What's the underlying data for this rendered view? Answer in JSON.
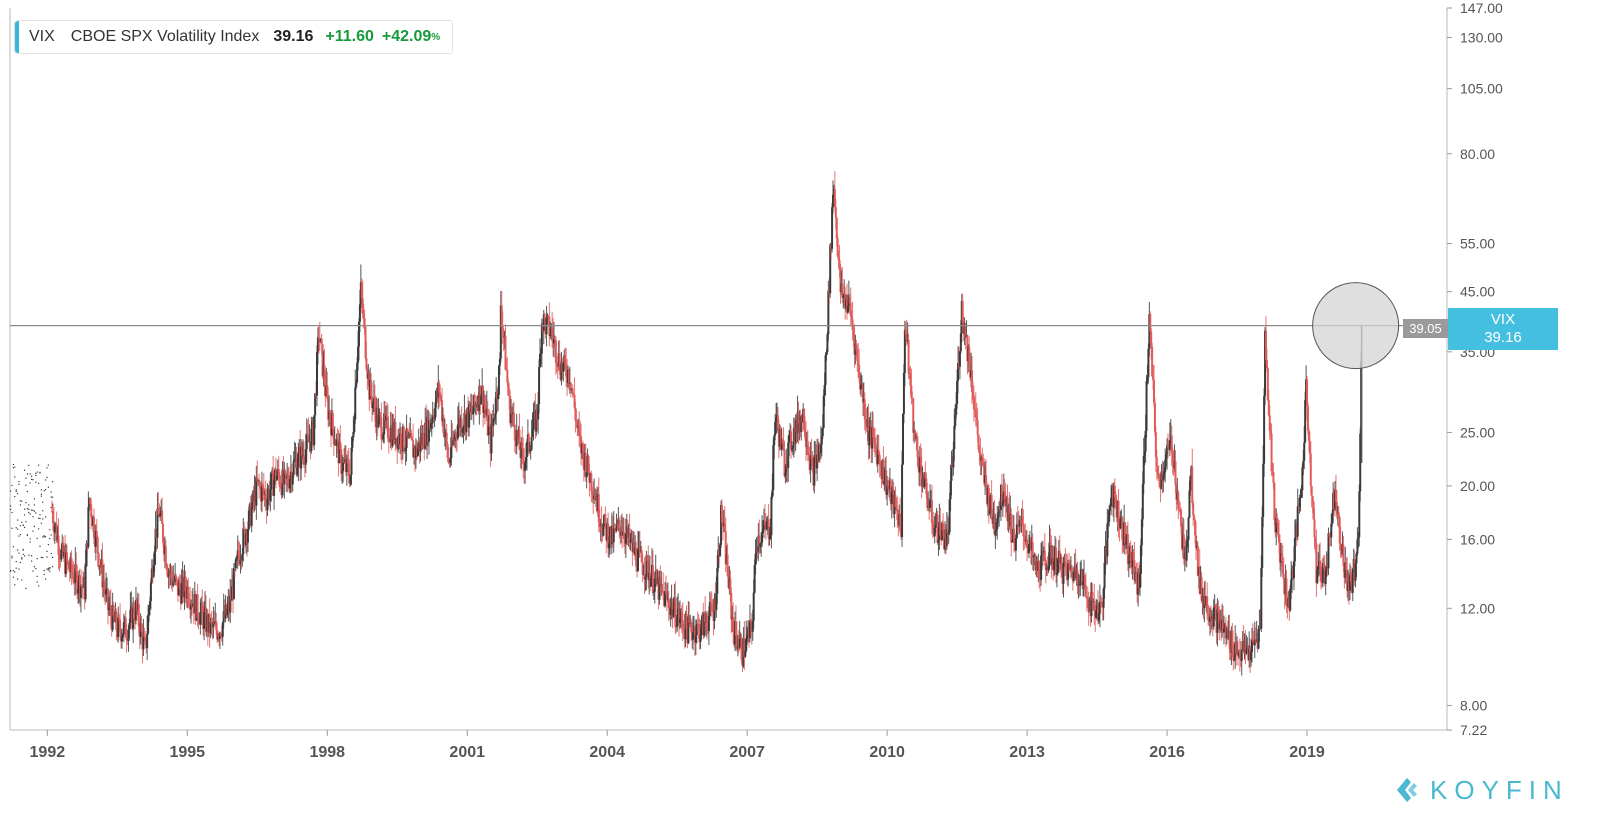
{
  "legend": {
    "ticker": "VIX",
    "name": "CBOE SPX Volatility Index",
    "value": "39.16",
    "change": "+11.60",
    "change_pct": "+42.09",
    "pct_sign": "%"
  },
  "crosshair_label": "39.05",
  "last_price_tag": {
    "ticker": "VIX",
    "value": "39.16"
  },
  "brand": {
    "name": "KOYFIN",
    "icon": "koyfin-logo-icon"
  },
  "colors": {
    "up": "#e25a5a",
    "down": "#3a3a3a",
    "accent": "#45bfdf",
    "positive": "#179a3b",
    "brand": "#4ab8cf"
  },
  "chart_data": {
    "type": "line",
    "title": "VIX CBOE SPX Volatility Index",
    "series": [
      {
        "values": [
          [
            1991.2,
            15
          ],
          [
            1991.6,
            17
          ],
          [
            1991.9,
            16
          ],
          [
            1992.1,
            18
          ],
          [
            1992.3,
            15
          ],
          [
            1992.5,
            14
          ],
          [
            1992.8,
            13
          ],
          [
            1992.9,
            19
          ],
          [
            1993.1,
            15
          ],
          [
            1993.3,
            12
          ],
          [
            1993.5,
            11
          ],
          [
            1993.7,
            11
          ],
          [
            1993.9,
            12
          ],
          [
            1994.1,
            10
          ],
          [
            1994.3,
            16
          ],
          [
            1994.4,
            18
          ],
          [
            1994.6,
            14
          ],
          [
            1994.8,
            13
          ],
          [
            1995.0,
            13
          ],
          [
            1995.2,
            12
          ],
          [
            1995.5,
            11
          ],
          [
            1995.7,
            11
          ],
          [
            1995.9,
            12
          ],
          [
            1996.1,
            15
          ],
          [
            1996.3,
            17
          ],
          [
            1996.5,
            20
          ],
          [
            1996.7,
            19
          ],
          [
            1996.9,
            21
          ],
          [
            1997.1,
            20
          ],
          [
            1997.3,
            22
          ],
          [
            1997.5,
            23
          ],
          [
            1997.7,
            25
          ],
          [
            1997.82,
            38
          ],
          [
            1998.0,
            28
          ],
          [
            1998.3,
            22
          ],
          [
            1998.5,
            21
          ],
          [
            1998.65,
            36
          ],
          [
            1998.72,
            45
          ],
          [
            1998.9,
            30
          ],
          [
            1999.1,
            26
          ],
          [
            1999.4,
            25
          ],
          [
            1999.7,
            24
          ],
          [
            1999.9,
            23
          ],
          [
            2000.2,
            26
          ],
          [
            2000.4,
            30
          ],
          [
            2000.6,
            22
          ],
          [
            2000.8,
            26
          ],
          [
            2001.1,
            27
          ],
          [
            2001.3,
            30
          ],
          [
            2001.5,
            24
          ],
          [
            2001.7,
            33
          ],
          [
            2001.72,
            43
          ],
          [
            2001.9,
            28
          ],
          [
            2002.2,
            22
          ],
          [
            2002.5,
            27
          ],
          [
            2002.6,
            40
          ],
          [
            2002.8,
            38
          ],
          [
            2003.0,
            33
          ],
          [
            2003.2,
            32
          ],
          [
            2003.4,
            24
          ],
          [
            2003.7,
            20
          ],
          [
            2003.9,
            17
          ],
          [
            2004.1,
            16
          ],
          [
            2004.3,
            17
          ],
          [
            2004.6,
            15
          ],
          [
            2004.9,
            14
          ],
          [
            2005.1,
            13
          ],
          [
            2005.4,
            12
          ],
          [
            2005.7,
            11
          ],
          [
            2006.0,
            11
          ],
          [
            2006.3,
            12
          ],
          [
            2006.45,
            18
          ],
          [
            2006.7,
            11
          ],
          [
            2006.9,
            10
          ],
          [
            2007.1,
            11
          ],
          [
            2007.2,
            16
          ],
          [
            2007.5,
            17
          ],
          [
            2007.6,
            27
          ],
          [
            2007.8,
            22
          ],
          [
            2008.0,
            25
          ],
          [
            2008.2,
            27
          ],
          [
            2008.4,
            21
          ],
          [
            2008.6,
            24
          ],
          [
            2008.75,
            45
          ],
          [
            2008.85,
            72
          ],
          [
            2009.0,
            45
          ],
          [
            2009.2,
            42
          ],
          [
            2009.4,
            32
          ],
          [
            2009.6,
            25
          ],
          [
            2009.8,
            23
          ],
          [
            2010.0,
            20
          ],
          [
            2010.3,
            17
          ],
          [
            2010.38,
            40
          ],
          [
            2010.6,
            24
          ],
          [
            2010.8,
            20
          ],
          [
            2011.0,
            17
          ],
          [
            2011.3,
            16
          ],
          [
            2011.6,
            42
          ],
          [
            2011.8,
            32
          ],
          [
            2012.0,
            22
          ],
          [
            2012.3,
            17
          ],
          [
            2012.5,
            20
          ],
          [
            2012.7,
            16
          ],
          [
            2012.9,
            17
          ],
          [
            2013.2,
            14
          ],
          [
            2013.5,
            15
          ],
          [
            2013.8,
            14
          ],
          [
            2014.1,
            14
          ],
          [
            2014.4,
            12
          ],
          [
            2014.6,
            12
          ],
          [
            2014.8,
            20
          ],
          [
            2015.1,
            16
          ],
          [
            2015.4,
            13
          ],
          [
            2015.62,
            40
          ],
          [
            2015.8,
            20
          ],
          [
            2016.1,
            24
          ],
          [
            2016.4,
            14
          ],
          [
            2016.5,
            22
          ],
          [
            2016.7,
            13
          ],
          [
            2016.9,
            12
          ],
          [
            2017.2,
            11
          ],
          [
            2017.5,
            10
          ],
          [
            2017.8,
            10
          ],
          [
            2018.0,
            11
          ],
          [
            2018.1,
            37
          ],
          [
            2018.3,
            18
          ],
          [
            2018.6,
            12
          ],
          [
            2018.9,
            21
          ],
          [
            2018.98,
            30
          ],
          [
            2019.2,
            14
          ],
          [
            2019.4,
            14
          ],
          [
            2019.6,
            20
          ],
          [
            2019.8,
            14
          ],
          [
            2019.95,
            13
          ],
          [
            2020.1,
            16
          ],
          [
            2020.15,
            27
          ],
          [
            2020.17,
            39.16
          ]
        ]
      }
    ],
    "x_ticks": [
      "1992",
      "1995",
      "1998",
      "2001",
      "2004",
      "2007",
      "2010",
      "2013",
      "2016",
      "2019"
    ],
    "y_ticks": [
      "147.00",
      "130.00",
      "105.00",
      "80.00",
      "55.00",
      "45.00",
      "35.00",
      "25.00",
      "20.00",
      "16.00",
      "12.00",
      "8.00",
      "7.22"
    ],
    "y_scale": "log",
    "ylim": [
      7.22,
      147
    ],
    "xlim": [
      1991.2,
      2022.0
    ],
    "last_value": 39.16,
    "crosshair_value": 39.05,
    "grid": false,
    "legend_position": "top-left"
  }
}
